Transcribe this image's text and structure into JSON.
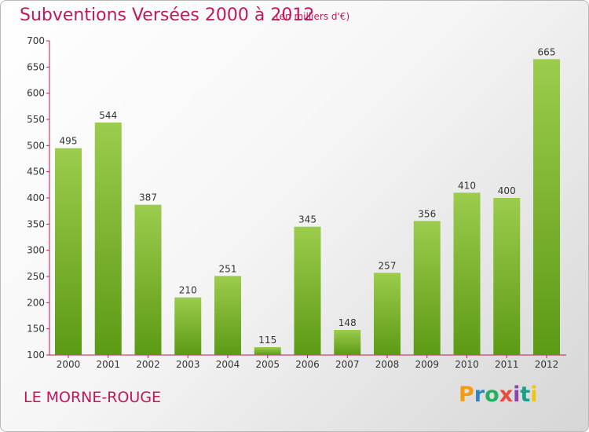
{
  "header": {
    "title": "Subventions Versées 2000 à 2012",
    "subtitle": "(en milliers d'€)"
  },
  "footer": {
    "place": "LE MORNE-ROUGE",
    "logo_text": "Proxiti",
    "logo_colors": [
      "#f39c12",
      "#2e86c1",
      "#27ae60",
      "#e74c3c",
      "#8e44ad",
      "#16a085",
      "#f1c40f"
    ]
  },
  "colors": {
    "accent": "#c2185b",
    "bar_light": "#9ccc4d",
    "bar_dark": "#5c9a14"
  },
  "chart_data": {
    "type": "bar",
    "title": "Subventions Versées 2000 à 2012",
    "subtitle": "(en milliers d'€)",
    "xlabel": "",
    "ylabel": "",
    "categories": [
      "2000",
      "2001",
      "2002",
      "2003",
      "2004",
      "2005",
      "2006",
      "2007",
      "2008",
      "2009",
      "2010",
      "2011",
      "2012"
    ],
    "values": [
      495,
      544,
      387,
      210,
      251,
      115,
      345,
      148,
      257,
      356,
      410,
      400,
      665
    ],
    "ylim": [
      100,
      700
    ],
    "yticks": [
      100,
      150,
      200,
      250,
      300,
      350,
      400,
      450,
      500,
      550,
      600,
      650,
      700
    ],
    "grid": false,
    "legend": "none"
  }
}
